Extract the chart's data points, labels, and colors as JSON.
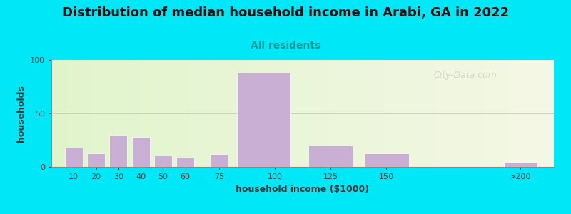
{
  "title": "Distribution of median household income in Arabi, GA in 2022",
  "subtitle": "All residents",
  "xlabel": "household income ($1000)",
  "ylabel": "households",
  "bar_positions": [
    10,
    20,
    30,
    40,
    50,
    60,
    75,
    95,
    125,
    150,
    210
  ],
  "bar_widths": [
    8,
    8,
    8,
    8,
    8,
    8,
    8,
    24,
    20,
    20,
    15
  ],
  "bar_heights": [
    18,
    13,
    30,
    28,
    11,
    9,
    12,
    88,
    20,
    13,
    4
  ],
  "bar_color": "#c9afd4",
  "bar_edgecolor": "#ffffff",
  "ylim": [
    0,
    100
  ],
  "yticks": [
    0,
    50,
    100
  ],
  "xtick_labels": [
    "10",
    "20",
    "30",
    "40",
    "50",
    "60",
    "75",
    "100",
    "125",
    "150",
    ">200"
  ],
  "xtick_positions": [
    10,
    20,
    30,
    40,
    50,
    60,
    75,
    100,
    125,
    150,
    210
  ],
  "bg_outer": "#00e8f8",
  "bg_inner": "#eef5e0",
  "grid_color": "#cccccc",
  "title_fontsize": 13,
  "subtitle_fontsize": 10,
  "label_fontsize": 9,
  "tick_fontsize": 8,
  "watermark_text": "City-Data.com",
  "watermark_alpha": 0.28,
  "xlim": [
    0,
    225
  ]
}
